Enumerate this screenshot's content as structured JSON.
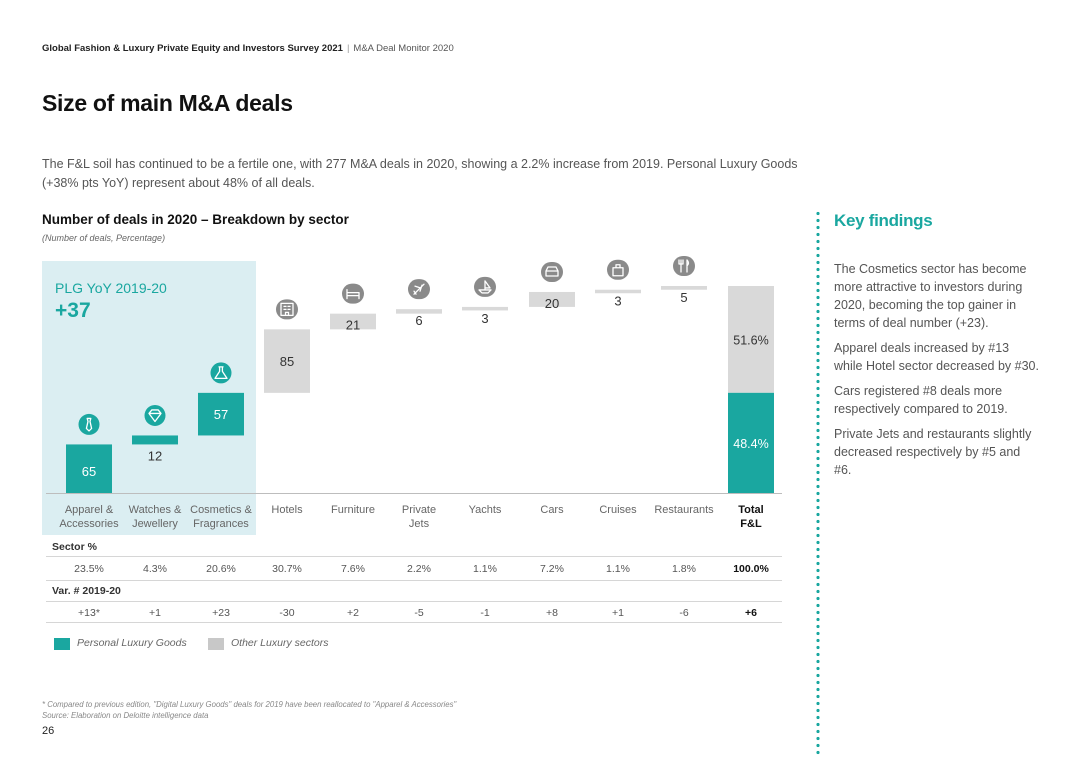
{
  "header": {
    "report": "Global Fashion & Luxury Private Equity and Investors Survey 2021",
    "separator": "|",
    "section": "M&A Deal Monitor 2020"
  },
  "page_title": "Size of main M&A deals",
  "intro": "The F&L soil has continued to be a fertile one, with 277 M&A deals in 2020, showing a 2.2% increase from 2019. Personal Luxury Goods (+38% pts YoY) represent about 48% of all deals.",
  "plg_box": {
    "label": "PLG YoY 2019-20",
    "value": "+37"
  },
  "colors": {
    "plg": "#1aa7a0",
    "other": "#d9d9d9",
    "plg_bg": "#dbeef2"
  },
  "chart_data": {
    "type": "bar",
    "subtype": "waterfall",
    "title": "Number of deals in 2020 – Breakdown by sector",
    "subtitle": "(Number of deals, Percentage)",
    "categories": [
      "Apparel & Accessories",
      "Watches & Jewellery",
      "Cosmetics & Fragrances",
      "Hotels",
      "Furniture",
      "Private Jets",
      "Yachts",
      "Cars",
      "Cruises",
      "Restaurants",
      "Total F&L"
    ],
    "tick_labels": [
      [
        "Apparel &",
        "Accessories"
      ],
      [
        "Watches &",
        "Jewellery"
      ],
      [
        "Cosmetics &",
        "Fragrances"
      ],
      [
        "Hotels"
      ],
      [
        "Furniture"
      ],
      [
        "Private",
        "Jets"
      ],
      [
        "Yachts"
      ],
      [
        "Cars"
      ],
      [
        "Cruises"
      ],
      [
        "Restaurants"
      ],
      [
        "Total",
        "F&L"
      ]
    ],
    "values": [
      65,
      12,
      57,
      85,
      21,
      6,
      3,
      20,
      3,
      5,
      277
    ],
    "value_labels": [
      "65",
      "12",
      "57",
      "85",
      "21",
      "6",
      "3",
      "20",
      "3",
      "5",
      ""
    ],
    "groups": [
      "plg",
      "plg",
      "plg",
      "other",
      "other",
      "other",
      "other",
      "other",
      "other",
      "other",
      "total"
    ],
    "icons": [
      "tie-icon",
      "diamond-icon",
      "flask-icon",
      "hotel-icon",
      "bed-icon",
      "plane-icon",
      "boat-icon",
      "car-icon",
      "luggage-icon",
      "cutlery-icon",
      ""
    ],
    "total_split": [
      {
        "name": "Personal Luxury Goods",
        "label": "48.4%",
        "value": 48.4
      },
      {
        "name": "Other Luxury sectors",
        "label": "51.6%",
        "value": 51.6
      }
    ],
    "ylim": [
      0,
      277
    ],
    "legend": [
      {
        "name": "Personal Luxury Goods",
        "color": "#1aa7a0"
      },
      {
        "name": "Other Luxury sectors",
        "color": "#c8c8c8"
      }
    ],
    "legend_position": "bottom-left"
  },
  "table": {
    "sector_pct_header": "Sector %",
    "sector_pct": [
      "23.5%",
      "4.3%",
      "20.6%",
      "30.7%",
      "7.6%",
      "2.2%",
      "1.1%",
      "7.2%",
      "1.1%",
      "1.8%",
      "100.0%"
    ],
    "var_header": "Var. # 2019-20",
    "var": [
      "+13*",
      "+1",
      "+23",
      "-30",
      "+2",
      "-5",
      "-1",
      "+8",
      "+1",
      "-6",
      "+6"
    ]
  },
  "footnotes": {
    "note": "* Compared to previous edition, \"Digital Luxury Goods\" deals for 2019 have been reallocated to \"Apparel & Accessories\"",
    "source": "Source: Elaboration on Deloitte intelligence data"
  },
  "page_number": "26",
  "key_findings": {
    "title": "Key findings",
    "items": [
      "The Cosmetics sector has become more attractive to investors during 2020, becoming the top gainer in terms of deal number (+23).",
      "Apparel deals increased by #13 while Hotel sector decreased by #30.",
      "Cars registered #8 deals more respectively compared to 2019.",
      "Private Jets and restaurants slightly decreased respectively by #5 and #6."
    ]
  }
}
